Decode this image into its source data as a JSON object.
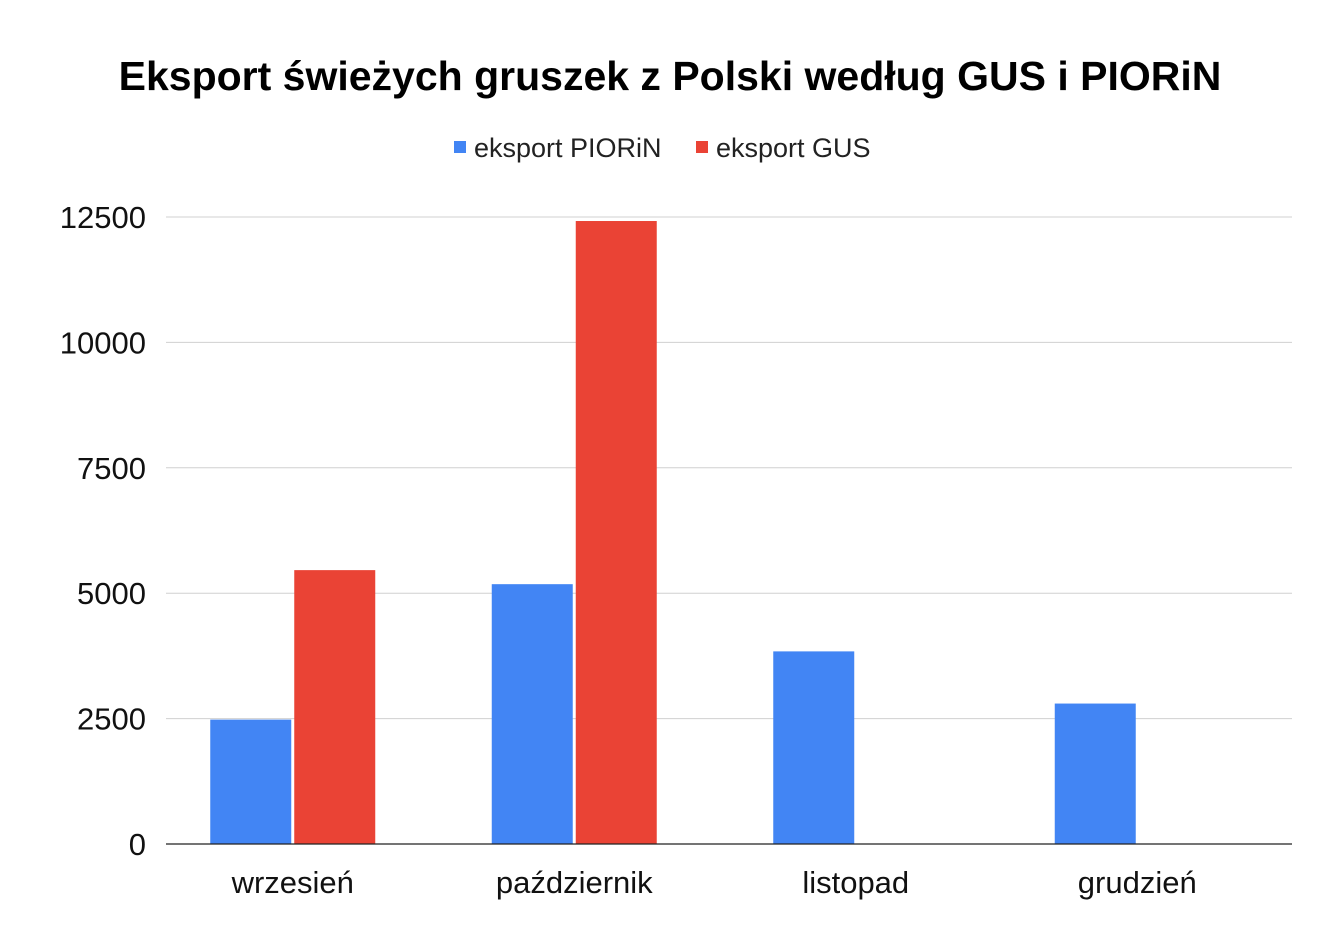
{
  "chart_data": {
    "type": "bar",
    "title": "Eksport świeżych gruszek z Polski według GUS i PIORiN",
    "categories": [
      "wrzesień",
      "październik",
      "listopad",
      "grudzień"
    ],
    "series": [
      {
        "name": "eksport PIORiN",
        "color": "#4285F4",
        "values": [
          2480,
          5180,
          3840,
          2800
        ]
      },
      {
        "name": "eksport GUS",
        "color": "#EA4335",
        "values": [
          5460,
          12420,
          null,
          null
        ]
      }
    ],
    "xlabel": "",
    "ylabel": "",
    "ylim": [
      0,
      12500
    ],
    "yticks": [
      0,
      2500,
      5000,
      7500,
      10000,
      12500
    ],
    "grid": true,
    "legend_position": "top-center"
  }
}
